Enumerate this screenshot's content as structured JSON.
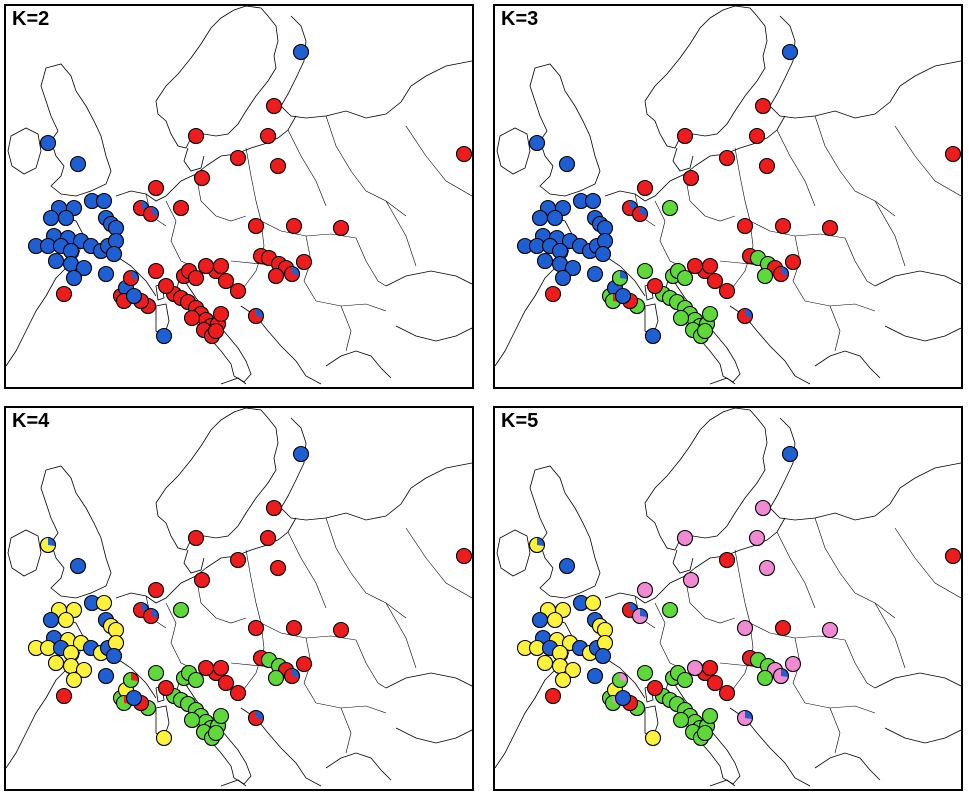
{
  "panels": [
    {
      "label": "K=2",
      "sites": [
        [
          "blue"
        ],
        [
          "red"
        ],
        [
          "red"
        ],
        [
          "red"
        ],
        [
          "red"
        ],
        [
          "red"
        ],
        [
          "red"
        ],
        [
          "red"
        ],
        [
          "red"
        ],
        [
          "blue"
        ],
        [
          "blue"
        ],
        [
          "blue"
        ],
        [
          "blue"
        ],
        [
          "blue"
        ],
        [
          "blue"
        ],
        [
          "blue"
        ],
        [
          "blue"
        ],
        [
          "blue"
        ],
        [
          "blue"
        ],
        [
          "blue"
        ],
        [
          "blue"
        ],
        [
          "blue"
        ],
        [
          "blue"
        ],
        [
          "red",
          "blue"
        ],
        [
          "red",
          "blue"
        ],
        [
          "red"
        ],
        [
          "blue"
        ],
        [
          "blue"
        ],
        [
          "blue"
        ],
        [
          "blue"
        ],
        [
          "blue"
        ],
        [
          "blue"
        ],
        [
          "blue"
        ],
        [
          "blue"
        ],
        [
          "blue"
        ],
        [
          "blue"
        ],
        [
          "blue"
        ],
        [
          "blue"
        ],
        [
          "blue"
        ],
        [
          "red"
        ],
        [
          "blue"
        ],
        [
          "red"
        ],
        [
          "blue"
        ],
        [
          "red",
          "blue"
        ],
        [
          "red"
        ],
        [
          "red"
        ],
        [
          "red"
        ],
        [
          "red"
        ],
        [
          "red"
        ],
        [
          "red"
        ],
        [
          "red"
        ],
        [
          "red"
        ],
        [
          "red"
        ],
        [
          "red"
        ],
        [
          "red"
        ],
        [
          "red"
        ],
        [
          "red"
        ],
        [
          "red"
        ],
        [
          "red"
        ],
        [
          "red"
        ],
        [
          "red"
        ],
        [
          "red"
        ],
        [
          "red"
        ],
        [
          "red"
        ],
        [
          "red"
        ],
        [
          "red"
        ],
        [
          "red"
        ],
        [
          "red"
        ],
        [
          "red"
        ],
        [
          "red",
          "blue"
        ],
        [
          "blue"
        ],
        [
          "red"
        ],
        [
          "blue"
        ],
        [
          "red"
        ],
        [
          "red"
        ],
        [
          "red"
        ],
        [
          "red"
        ],
        [
          "red"
        ],
        [
          "red"
        ],
        [
          "red"
        ],
        [
          "red"
        ],
        [
          "red"
        ],
        [
          "red",
          "blue"
        ]
      ]
    },
    {
      "label": "K=3",
      "sites": [
        [
          "blue"
        ],
        [
          "red"
        ],
        [
          "red"
        ],
        [
          "red"
        ],
        [
          "red"
        ],
        [
          "red"
        ],
        [
          "red"
        ],
        [
          "red"
        ],
        [
          "red"
        ],
        [
          "blue"
        ],
        [
          "blue"
        ],
        [
          "blue"
        ],
        [
          "blue"
        ],
        [
          "blue"
        ],
        [
          "blue"
        ],
        [
          "blue"
        ],
        [
          "blue"
        ],
        [
          "blue"
        ],
        [
          "blue"
        ],
        [
          "blue"
        ],
        [
          "blue"
        ],
        [
          "blue"
        ],
        [
          "blue"
        ],
        [
          "red",
          "blue"
        ],
        [
          "red",
          "blue"
        ],
        [
          "green"
        ],
        [
          "blue"
        ],
        [
          "blue"
        ],
        [
          "blue"
        ],
        [
          "blue"
        ],
        [
          "blue"
        ],
        [
          "blue"
        ],
        [
          "blue"
        ],
        [
          "blue"
        ],
        [
          "blue"
        ],
        [
          "blue"
        ],
        [
          "blue"
        ],
        [
          "blue"
        ],
        [
          "blue"
        ],
        [
          "red"
        ],
        [
          "blue"
        ],
        [
          "green",
          "red"
        ],
        [
          "blue"
        ],
        [
          "green",
          "blue"
        ],
        [
          "green"
        ],
        [
          "green"
        ],
        [
          "green"
        ],
        [
          "green"
        ],
        [
          "green"
        ],
        [
          "green"
        ],
        [
          "green"
        ],
        [
          "green"
        ],
        [
          "green"
        ],
        [
          "green"
        ],
        [
          "green"
        ],
        [
          "green"
        ],
        [
          "green"
        ],
        [
          "green"
        ],
        [
          "green"
        ],
        [
          "green"
        ],
        [
          "green"
        ],
        [
          "green"
        ],
        [
          "red"
        ],
        [
          "red"
        ],
        [
          "red"
        ],
        [
          "red"
        ],
        [
          "red"
        ],
        [
          "red"
        ],
        [
          "red"
        ],
        [
          "red",
          "blue"
        ],
        [
          "blue"
        ],
        [
          "green",
          "red"
        ],
        [
          "blue"
        ],
        [
          "red"
        ],
        [
          "red"
        ],
        [
          "red"
        ],
        [
          "red"
        ],
        [
          "green"
        ],
        [
          "green"
        ],
        [
          "red"
        ],
        [
          "red"
        ],
        [
          "green"
        ],
        [
          "red",
          "blue"
        ]
      ]
    },
    {
      "label": "K=4",
      "sites": [
        [
          "blue"
        ],
        [
          "red"
        ],
        [
          "red"
        ],
        [
          "red"
        ],
        [
          "red"
        ],
        [
          "red"
        ],
        [
          "red"
        ],
        [
          "red"
        ],
        [
          "red"
        ],
        [
          "yellow",
          "blue"
        ],
        [
          "blue"
        ],
        [
          "yellow"
        ],
        [
          "yellow"
        ],
        [
          "blue"
        ],
        [
          "yellow"
        ],
        [
          "blue"
        ],
        [
          "yellow"
        ],
        [
          "blue"
        ],
        [
          "yellow"
        ],
        [
          "yellow"
        ],
        [
          "blue"
        ],
        [
          "yellow"
        ],
        [
          "yellow"
        ],
        [
          "red",
          "blue"
        ],
        [
          "red",
          "blue"
        ],
        [
          "green"
        ],
        [
          "yellow"
        ],
        [
          "yellow"
        ],
        [
          "blue"
        ],
        [
          "yellow"
        ],
        [
          "blue"
        ],
        [
          "yellow"
        ],
        [
          "blue"
        ],
        [
          "yellow"
        ],
        [
          "blue"
        ],
        [
          "yellow"
        ],
        [
          "yellow"
        ],
        [
          "yellow"
        ],
        [
          "blue"
        ],
        [
          "red"
        ],
        [
          "yellow"
        ],
        [
          "green",
          "red"
        ],
        [
          "yellow"
        ],
        [
          "green",
          "red"
        ],
        [
          "green"
        ],
        [
          "green"
        ],
        [
          "green"
        ],
        [
          "green"
        ],
        [
          "green"
        ],
        [
          "green"
        ],
        [
          "green"
        ],
        [
          "green"
        ],
        [
          "green"
        ],
        [
          "green"
        ],
        [
          "green"
        ],
        [
          "green"
        ],
        [
          "green"
        ],
        [
          "green"
        ],
        [
          "green"
        ],
        [
          "green"
        ],
        [
          "green"
        ],
        [
          "green"
        ],
        [
          "red"
        ],
        [
          "red"
        ],
        [
          "red"
        ],
        [
          "red"
        ],
        [
          "red"
        ],
        [
          "red"
        ],
        [
          "red"
        ],
        [
          "red",
          "blue"
        ],
        [
          "yellow"
        ],
        [
          "green",
          "red"
        ],
        [
          "blue"
        ],
        [
          "red"
        ],
        [
          "red"
        ],
        [
          "red"
        ],
        [
          "red"
        ],
        [
          "green"
        ],
        [
          "green"
        ],
        [
          "red"
        ],
        [
          "red"
        ],
        [
          "green"
        ],
        [
          "red",
          "blue"
        ]
      ]
    },
    {
      "label": "K=5",
      "sites": [
        [
          "blue"
        ],
        [
          "pink"
        ],
        [
          "pink"
        ],
        [
          "pink"
        ],
        [
          "red"
        ],
        [
          "pink"
        ],
        [
          "red"
        ],
        [
          "pink"
        ],
        [
          "pink"
        ],
        [
          "yellow",
          "blue"
        ],
        [
          "blue"
        ],
        [
          "yellow"
        ],
        [
          "yellow"
        ],
        [
          "blue"
        ],
        [
          "yellow"
        ],
        [
          "blue"
        ],
        [
          "yellow"
        ],
        [
          "blue"
        ],
        [
          "yellow"
        ],
        [
          "yellow"
        ],
        [
          "blue"
        ],
        [
          "yellow"
        ],
        [
          "yellow"
        ],
        [
          "red",
          "blue"
        ],
        [
          "pink",
          "blue"
        ],
        [
          "green"
        ],
        [
          "yellow"
        ],
        [
          "yellow"
        ],
        [
          "blue"
        ],
        [
          "yellow"
        ],
        [
          "blue"
        ],
        [
          "yellow"
        ],
        [
          "blue"
        ],
        [
          "yellow"
        ],
        [
          "blue"
        ],
        [
          "yellow"
        ],
        [
          "yellow"
        ],
        [
          "yellow"
        ],
        [
          "blue"
        ],
        [
          "red"
        ],
        [
          "yellow"
        ],
        [
          "green",
          "pink"
        ],
        [
          "yellow"
        ],
        [
          "green",
          "pink"
        ],
        [
          "green"
        ],
        [
          "green"
        ],
        [
          "green"
        ],
        [
          "green"
        ],
        [
          "green"
        ],
        [
          "green"
        ],
        [
          "green"
        ],
        [
          "green"
        ],
        [
          "green"
        ],
        [
          "green"
        ],
        [
          "green"
        ],
        [
          "green"
        ],
        [
          "green"
        ],
        [
          "green"
        ],
        [
          "green"
        ],
        [
          "green"
        ],
        [
          "green"
        ],
        [
          "green"
        ],
        [
          "red"
        ],
        [
          "red"
        ],
        [
          "red"
        ],
        [
          "red"
        ],
        [
          "red"
        ],
        [
          "red"
        ],
        [
          "red"
        ],
        [
          "pink",
          "blue"
        ],
        [
          "yellow"
        ],
        [
          "green",
          "pink"
        ],
        [
          "blue"
        ],
        [
          "pink"
        ],
        [
          "pink"
        ],
        [
          "red"
        ],
        [
          "pink"
        ],
        [
          "green"
        ],
        [
          "green"
        ],
        [
          "pink"
        ],
        [
          "pink"
        ],
        [
          "green"
        ],
        [
          "pink",
          "blue"
        ]
      ]
    }
  ],
  "colors": {
    "blue": "#1f5fd4",
    "red": "#ee1c1c",
    "green": "#5fd93a",
    "yellow": "#fff23a",
    "pink": "#f08ad2"
  }
}
